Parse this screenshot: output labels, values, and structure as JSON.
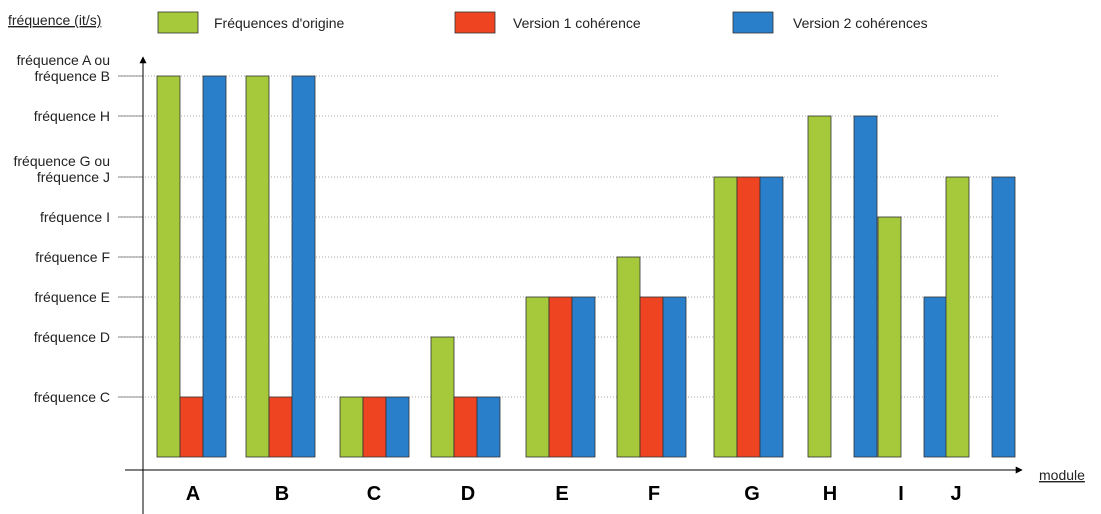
{
  "chart_data": {
    "type": "bar",
    "ylabel": "fréquence (it/s)",
    "xlabel": "module",
    "yticks": [
      {
        "key": "AB",
        "lines": [
          "fréquence A ou",
          "fréquence B"
        ],
        "level": 9
      },
      {
        "key": "H",
        "lines": [
          "fréquence H"
        ],
        "level": 8
      },
      {
        "key": "GJ",
        "lines": [
          "fréquence G ou",
          "fréquence J"
        ],
        "level": 7
      },
      {
        "key": "I",
        "lines": [
          "fréquence I"
        ],
        "level": 6
      },
      {
        "key": "F",
        "lines": [
          "fréquence F"
        ],
        "level": 5
      },
      {
        "key": "E",
        "lines": [
          "fréquence E"
        ],
        "level": 4
      },
      {
        "key": "D",
        "lines": [
          "fréquence D"
        ],
        "level": 3
      },
      {
        "key": "C",
        "lines": [
          "fréquence C"
        ],
        "level": 2
      }
    ],
    "categories": [
      "A",
      "B",
      "C",
      "D",
      "E",
      "F",
      "G",
      "H",
      "I",
      "J"
    ],
    "series": [
      {
        "name": "Fréquences d'origine",
        "color": "#a5c93a",
        "values": [
          9,
          9,
          2,
          3,
          4,
          5,
          7,
          8,
          6,
          7
        ]
      },
      {
        "name": "Version 1 cohérence",
        "color": "#ee4422",
        "values": [
          2,
          2,
          2,
          2,
          4,
          4,
          7,
          null,
          null,
          null
        ]
      },
      {
        "name": "Version 2 cohérences",
        "color": "#2a7fcb",
        "values": [
          9,
          9,
          2,
          2,
          4,
          4,
          7,
          8,
          4,
          7
        ]
      }
    ],
    "grid": "horizontal dotted lines at each tick",
    "legend": "top"
  }
}
